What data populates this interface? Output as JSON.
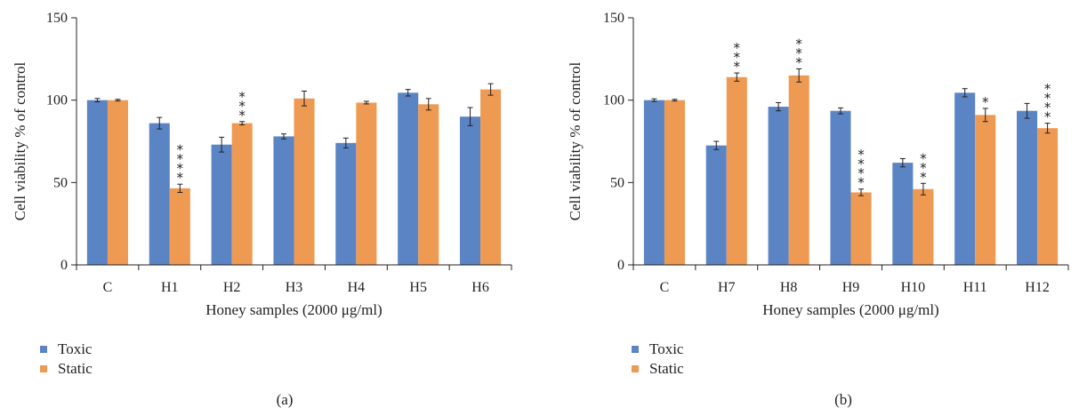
{
  "colors": {
    "toxic": "#5b84c4",
    "static": "#ee9a52",
    "axis": "#231f20",
    "error": "#231f20"
  },
  "chart_data": [
    {
      "type": "bar",
      "panel_label": "(a)",
      "categories": [
        "C",
        "H1",
        "H2",
        "H3",
        "H4",
        "H5",
        "H6"
      ],
      "series": [
        {
          "name": "Toxic",
          "values": [
            100,
            86,
            73,
            78,
            74,
            104.5,
            90
          ],
          "errors": [
            1,
            3.5,
            4.5,
            1.5,
            3,
            2,
            5.5
          ]
        },
        {
          "name": "Static",
          "values": [
            100,
            46.5,
            86,
            101,
            98.5,
            97.5,
            106.5
          ],
          "errors": [
            0.5,
            2.5,
            1,
            4.5,
            0.8,
            3.5,
            3.5
          ]
        }
      ],
      "significance": [
        {
          "category": "H1",
          "series": "Static",
          "stars": "****"
        },
        {
          "category": "H2",
          "series": "Static",
          "stars": "***"
        }
      ],
      "xlabel": "Honey samples (2000 μg/ml)",
      "ylabel": "Cell viability % of control",
      "ylim": [
        0,
        150
      ],
      "yticks": [
        "0",
        "50",
        "100",
        "150"
      ],
      "legend_position": "bottom-left"
    },
    {
      "type": "bar",
      "panel_label": "(b)",
      "categories": [
        "C",
        "H7",
        "H8",
        "H9",
        "H10",
        "H11",
        "H12"
      ],
      "series": [
        {
          "name": "Toxic",
          "values": [
            100,
            72.5,
            96,
            93.5,
            62,
            104.5,
            93.5
          ],
          "errors": [
            0.8,
            2.5,
            2.5,
            1.8,
            2.5,
            2.5,
            4.5
          ]
        },
        {
          "name": "Static",
          "values": [
            100,
            114,
            115,
            44,
            46,
            91,
            83
          ],
          "errors": [
            0.5,
            2.5,
            4,
            2,
            3.5,
            4,
            3
          ]
        }
      ],
      "significance": [
        {
          "category": "H7",
          "series": "Static",
          "stars": "***"
        },
        {
          "category": "H8",
          "series": "Static",
          "stars": "***"
        },
        {
          "category": "H9",
          "series": "Static",
          "stars": "****"
        },
        {
          "category": "H10",
          "series": "Static",
          "stars": "***"
        },
        {
          "category": "H11",
          "series": "Static",
          "stars": "*"
        },
        {
          "category": "H12",
          "series": "Static",
          "stars": "****"
        }
      ],
      "xlabel": "Honey samples (2000 μg/ml)",
      "ylabel": "Cell viability % of control",
      "ylim": [
        0,
        150
      ],
      "yticks": [
        "0",
        "50",
        "100",
        "150"
      ],
      "legend_position": "bottom-left"
    }
  ]
}
